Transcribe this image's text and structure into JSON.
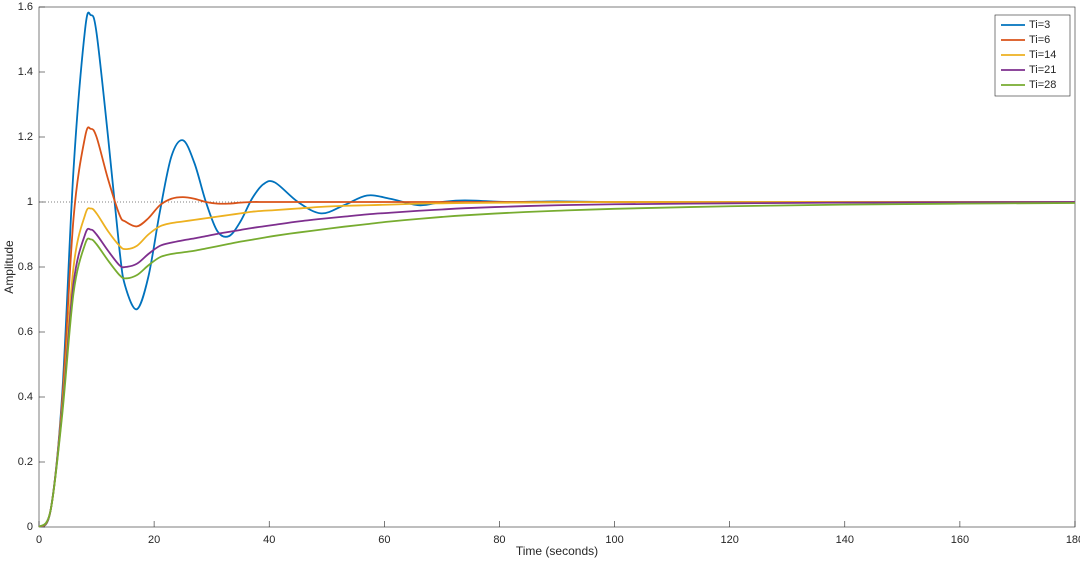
{
  "chart_data": {
    "type": "line",
    "xlabel": "Time (seconds)",
    "ylabel": "Amplitude",
    "x": [
      0,
      2,
      4,
      6,
      8,
      9,
      10,
      12,
      14,
      15,
      17,
      19,
      21,
      23,
      25,
      27,
      29,
      31,
      33,
      35,
      37,
      39,
      41,
      45,
      49,
      53,
      57,
      61,
      66,
      70,
      74,
      82,
      90,
      100,
      120,
      140,
      160,
      180
    ],
    "series": [
      {
        "name": "Ti=3",
        "color": "#0072bd",
        "values": [
          0,
          0.05,
          0.4,
          1.1,
          1.53,
          1.575,
          1.52,
          1.2,
          0.85,
          0.74,
          0.67,
          0.77,
          0.97,
          1.14,
          1.19,
          1.12,
          1.0,
          0.91,
          0.895,
          0.94,
          1.01,
          1.055,
          1.06,
          1.0,
          0.965,
          0.99,
          1.02,
          1.01,
          0.99,
          1.0,
          1.005,
          1.0,
          1.002,
          1,
          1,
          1,
          1,
          1
        ]
      },
      {
        "name": "Ti=6",
        "color": "#d95319",
        "values": [
          0,
          0.05,
          0.38,
          0.95,
          1.2,
          1.225,
          1.2,
          1.07,
          0.96,
          0.94,
          0.925,
          0.95,
          0.99,
          1.01,
          1.015,
          1.01,
          1.0,
          0.995,
          0.995,
          0.998,
          1,
          1,
          1,
          1,
          1,
          1,
          1,
          1,
          1,
          1,
          1,
          1,
          1,
          1,
          1,
          1,
          1,
          1
        ]
      },
      {
        "name": "Ti=14",
        "color": "#edb120",
        "values": [
          0,
          0.05,
          0.36,
          0.8,
          0.96,
          0.98,
          0.965,
          0.91,
          0.865,
          0.855,
          0.865,
          0.9,
          0.925,
          0.935,
          0.94,
          0.945,
          0.95,
          0.955,
          0.96,
          0.965,
          0.97,
          0.973,
          0.975,
          0.98,
          0.985,
          0.988,
          0.99,
          0.992,
          0.995,
          0.996,
          0.997,
          0.998,
          0.999,
          1,
          1,
          1,
          1,
          1
        ]
      },
      {
        "name": "Ti=21",
        "color": "#7e2f8e",
        "values": [
          0,
          0.05,
          0.35,
          0.75,
          0.9,
          0.915,
          0.9,
          0.85,
          0.805,
          0.8,
          0.81,
          0.84,
          0.865,
          0.875,
          0.882,
          0.888,
          0.895,
          0.902,
          0.908,
          0.914,
          0.92,
          0.925,
          0.93,
          0.94,
          0.948,
          0.955,
          0.962,
          0.967,
          0.973,
          0.977,
          0.981,
          0.986,
          0.99,
          0.993,
          0.996,
          0.998,
          0.999,
          1
        ]
      },
      {
        "name": "Ti=28",
        "color": "#77ac30",
        "values": [
          0,
          0.05,
          0.34,
          0.72,
          0.87,
          0.885,
          0.87,
          0.82,
          0.775,
          0.765,
          0.775,
          0.805,
          0.83,
          0.84,
          0.845,
          0.85,
          0.857,
          0.864,
          0.871,
          0.878,
          0.884,
          0.89,
          0.896,
          0.906,
          0.915,
          0.924,
          0.932,
          0.94,
          0.948,
          0.954,
          0.959,
          0.967,
          0.973,
          0.979,
          0.987,
          0.992,
          0.995,
          0.997
        ]
      }
    ],
    "reference_line": 1,
    "xlim": [
      0,
      180
    ],
    "xticks": [
      0,
      20,
      40,
      60,
      80,
      100,
      120,
      140,
      160,
      180
    ],
    "ylim": [
      0,
      1.6
    ],
    "yticks": [
      0,
      0.2,
      0.4,
      0.6,
      0.8,
      1,
      1.2,
      1.4,
      1.6
    ],
    "legend": "upper right"
  }
}
